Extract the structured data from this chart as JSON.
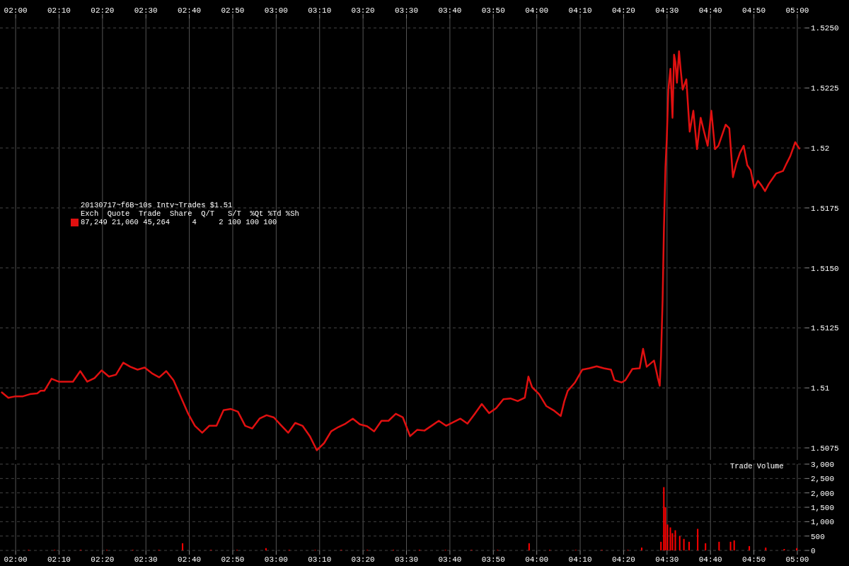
{
  "chart_data": [
    {
      "type": "line",
      "xlim": [
        1.94,
        5.03
      ],
      "xticks": [
        {
          "value": 2,
          "label": "02:00"
        },
        {
          "value": 2.1667,
          "label": "02:10"
        },
        {
          "value": 2.3333,
          "label": "02:20"
        },
        {
          "value": 2.5,
          "label": "02:30"
        },
        {
          "value": 2.6667,
          "label": "02:40"
        },
        {
          "value": 2.8333,
          "label": "02:50"
        },
        {
          "value": 3,
          "label": "03:00"
        },
        {
          "value": 3.1667,
          "label": "03:10"
        },
        {
          "value": 3.3333,
          "label": "03:20"
        },
        {
          "value": 3.5,
          "label": "03:30"
        },
        {
          "value": 3.6667,
          "label": "03:40"
        },
        {
          "value": 3.8333,
          "label": "03:50"
        },
        {
          "value": 4,
          "label": "04:00"
        },
        {
          "value": 4.1667,
          "label": "04:10"
        },
        {
          "value": 4.3333,
          "label": "04:20"
        },
        {
          "value": 4.5,
          "label": "04:30"
        },
        {
          "value": 4.6667,
          "label": "04:40"
        },
        {
          "value": 4.8333,
          "label": "04:50"
        },
        {
          "value": 5,
          "label": "05:00"
        }
      ],
      "ylim": [
        1.507,
        1.5254
      ],
      "yticks": [
        1.5075,
        1.51,
        1.5125,
        {
          "value": 1.515,
          "label": "1.5150"
        },
        1.5175,
        1.52,
        1.5225,
        {
          "value": 1.525,
          "label": "1.5250"
        }
      ],
      "grid": true,
      "marker": "none",
      "line_style": "solid",
      "legend": false,
      "annotations": [
        "20130717~f6B~10s Intv~Trades $1.51",
        "Exch  Quote  Trade  Share  Q/T   S/T  %Qt %Td %Sh",
        "87,249 21,060 45,264     4     2 100 100 100"
      ],
      "x": [
        1.945,
        1.972,
        2.0,
        2.028,
        2.055,
        2.083,
        2.096,
        2.11,
        2.138,
        2.165,
        2.193,
        2.22,
        2.248,
        2.275,
        2.303,
        2.33,
        2.358,
        2.385,
        2.413,
        2.44,
        2.468,
        2.495,
        2.523,
        2.551,
        2.578,
        2.606,
        2.633,
        2.661,
        2.688,
        2.716,
        2.743,
        2.771,
        2.798,
        2.826,
        2.853,
        2.881,
        2.908,
        2.936,
        2.963,
        2.991,
        3.018,
        3.046,
        3.073,
        3.101,
        3.129,
        3.156,
        3.184,
        3.211,
        3.239,
        3.266,
        3.294,
        3.321,
        3.349,
        3.376,
        3.404,
        3.431,
        3.459,
        3.486,
        3.514,
        3.541,
        3.569,
        3.596,
        3.624,
        3.652,
        3.707,
        3.734,
        3.762,
        3.789,
        3.817,
        3.844,
        3.872,
        3.899,
        3.927,
        3.954,
        3.968,
        3.982,
        4.009,
        4.037,
        4.064,
        4.092,
        4.106,
        4.119,
        4.147,
        4.175,
        4.202,
        4.23,
        4.257,
        4.285,
        4.298,
        4.326,
        4.34,
        4.367,
        4.395,
        4.408,
        4.422,
        4.45,
        4.464,
        4.472,
        4.477,
        4.483,
        4.488,
        4.494,
        4.499,
        4.505,
        4.513,
        4.521,
        4.527,
        4.532,
        4.538,
        4.546,
        4.552,
        4.56,
        4.574,
        4.587,
        4.601,
        4.615,
        4.629,
        4.642,
        4.656,
        4.67,
        4.684,
        4.697,
        4.725,
        4.739,
        4.753,
        4.766,
        4.78,
        4.794,
        4.808,
        4.821,
        4.835,
        4.849,
        4.863,
        4.876,
        4.89,
        4.918,
        4.945,
        4.959,
        4.973,
        4.992,
        5.009
      ],
      "series": [
        {
          "color": "#e01010",
          "values": [
            1.50983,
            1.50959,
            1.50965,
            1.50965,
            1.50974,
            1.50977,
            1.50988,
            1.50988,
            1.51038,
            1.51026,
            1.51026,
            1.51026,
            1.5107,
            1.51026,
            1.51041,
            1.51073,
            1.51047,
            1.51055,
            1.51105,
            1.51088,
            1.51076,
            1.51085,
            1.51061,
            1.51044,
            1.5107,
            1.51032,
            1.50965,
            1.50895,
            1.50842,
            1.50813,
            1.50842,
            1.50842,
            1.50907,
            1.50912,
            1.50901,
            1.50842,
            1.50831,
            1.50872,
            1.50886,
            1.50877,
            1.50845,
            1.50813,
            1.50854,
            1.50842,
            1.50799,
            1.5074,
            1.5077,
            1.50819,
            1.50837,
            1.50851,
            1.50872,
            1.50848,
            1.5084,
            1.50819,
            1.50863,
            1.50863,
            1.50892,
            1.50877,
            1.50799,
            1.50825,
            1.50822,
            1.50842,
            1.50863,
            1.50842,
            1.50872,
            1.50851,
            1.50892,
            1.50933,
            1.50895,
            1.50915,
            1.50953,
            1.50956,
            1.50945,
            1.50959,
            1.51047,
            1.51003,
            1.50974,
            1.50924,
            1.50907,
            1.50883,
            1.50945,
            1.50988,
            1.51023,
            1.51076,
            1.51082,
            1.5109,
            1.51082,
            1.51076,
            1.51032,
            1.51023,
            1.51032,
            1.51079,
            1.51082,
            1.51163,
            1.51088,
            1.51114,
            1.51044,
            1.51009,
            1.51134,
            1.51368,
            1.51659,
            1.51922,
            1.52038,
            1.52243,
            1.5233,
            1.52126,
            1.52389,
            1.52359,
            1.52272,
            1.52403,
            1.5233,
            1.52243,
            1.52286,
            1.52068,
            1.52155,
            1.51995,
            1.52126,
            1.52068,
            1.52009,
            1.52155,
            1.51995,
            1.52009,
            1.52097,
            1.52082,
            1.51878,
            1.51936,
            1.5198,
            1.52009,
            1.51928,
            1.51907,
            1.51834,
            1.51863,
            1.51843,
            1.5182,
            1.51849,
            1.51893,
            1.51904,
            1.51936,
            1.51966,
            1.52024,
            1.51995
          ]
        }
      ]
    },
    {
      "type": "bar",
      "title": "Trade Volume",
      "xlim": [
        1.94,
        5.03
      ],
      "xticks": [
        {
          "value": 2,
          "label": "02:00"
        },
        {
          "value": 2.1667,
          "label": "02:10"
        },
        {
          "value": 2.3333,
          "label": "02:20"
        },
        {
          "value": 2.5,
          "label": "02:30"
        },
        {
          "value": 2.6667,
          "label": "02:40"
        },
        {
          "value": 2.8333,
          "label": "02:50"
        },
        {
          "value": 3,
          "label": "03:00"
        },
        {
          "value": 3.1667,
          "label": "03:10"
        },
        {
          "value": 3.3333,
          "label": "03:20"
        },
        {
          "value": 3.5,
          "label": "03:30"
        },
        {
          "value": 3.6667,
          "label": "03:40"
        },
        {
          "value": 3.8333,
          "label": "03:50"
        },
        {
          "value": 4,
          "label": "04:00"
        },
        {
          "value": 4.1667,
          "label": "04:10"
        },
        {
          "value": 4.3333,
          "label": "04:20"
        },
        {
          "value": 4.5,
          "label": "04:30"
        },
        {
          "value": 4.6667,
          "label": "04:40"
        },
        {
          "value": 4.8333,
          "label": "04:50"
        },
        {
          "value": 5,
          "label": "05:00"
        }
      ],
      "ylim": [
        0,
        3000
      ],
      "yticks": [
        0,
        500,
        {
          "value": 1000,
          "label": "1,000"
        },
        {
          "value": 1500,
          "label": "1,500"
        },
        {
          "value": 2000,
          "label": "2,000"
        },
        {
          "value": 2500,
          "label": "2,500"
        },
        {
          "value": 3000,
          "label": "3,000"
        }
      ],
      "grid": true,
      "legend": false,
      "x": [
        2.05,
        2.15,
        2.25,
        2.35,
        2.45,
        2.55,
        2.641,
        2.75,
        2.85,
        2.961,
        3.05,
        3.15,
        3.25,
        3.35,
        3.45,
        3.55,
        3.65,
        3.75,
        3.85,
        3.971,
        4.05,
        4.15,
        4.25,
        4.35,
        4.403,
        4.477,
        4.488,
        4.494,
        4.502,
        4.513,
        4.521,
        4.532,
        4.549,
        4.565,
        4.585,
        4.618,
        4.648,
        4.7,
        4.744,
        4.758,
        4.816,
        4.879,
        4.95,
        4.998
      ],
      "series": [
        {
          "color": "#ff0000",
          "values": [
            20,
            20,
            20,
            20,
            20,
            20,
            250,
            20,
            20,
            80,
            20,
            20,
            20,
            20,
            20,
            20,
            20,
            20,
            20,
            250,
            20,
            20,
            20,
            20,
            100,
            300,
            2200,
            1500,
            900,
            800,
            600,
            700,
            500,
            400,
            300,
            750,
            250,
            300,
            300,
            350,
            150,
            100,
            50,
            80
          ]
        }
      ]
    }
  ]
}
